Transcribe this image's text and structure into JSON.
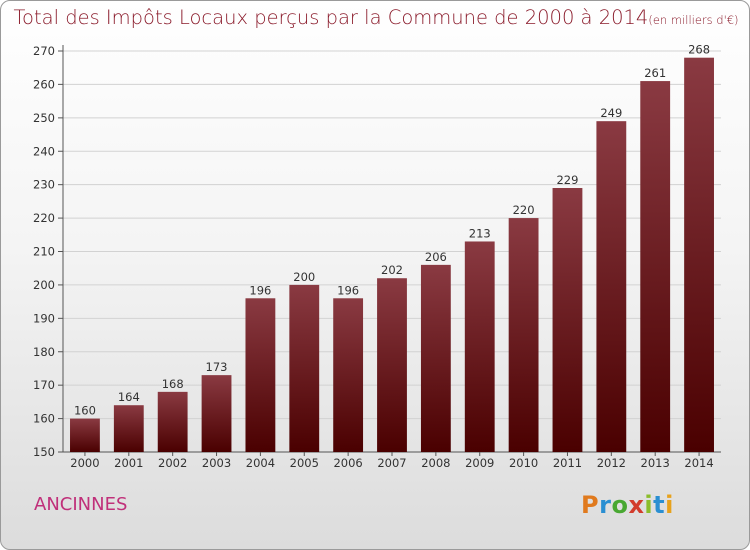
{
  "title": {
    "main": "Total des Impôts Locaux perçus par la Commune de 2000 à 2014",
    "unit": "(en milliers d'€)"
  },
  "commune": "ANCINNES",
  "logo": {
    "p": "P",
    "r": "r",
    "o": "o",
    "x": "x",
    "i": "i",
    "t": "t",
    "i2": "i"
  },
  "colors": {
    "bar_top": "#8a3a42",
    "bar_bottom": "#4a0000",
    "title": "#8a1a2a",
    "commune": "#c0307a"
  },
  "chart_data": {
    "type": "bar",
    "categories": [
      "2000",
      "2001",
      "2002",
      "2003",
      "2004",
      "2005",
      "2006",
      "2007",
      "2008",
      "2009",
      "2010",
      "2011",
      "2012",
      "2013",
      "2014"
    ],
    "values": [
      160,
      164,
      168,
      173,
      196,
      200,
      196,
      202,
      206,
      213,
      220,
      229,
      249,
      261,
      268
    ],
    "title": "Total des Impôts Locaux perçus par la Commune de 2000 à 2014",
    "ylim": [
      150,
      270
    ],
    "yticks": [
      150,
      160,
      170,
      180,
      190,
      200,
      210,
      220,
      230,
      240,
      250,
      260,
      270
    ],
    "grid": true
  }
}
